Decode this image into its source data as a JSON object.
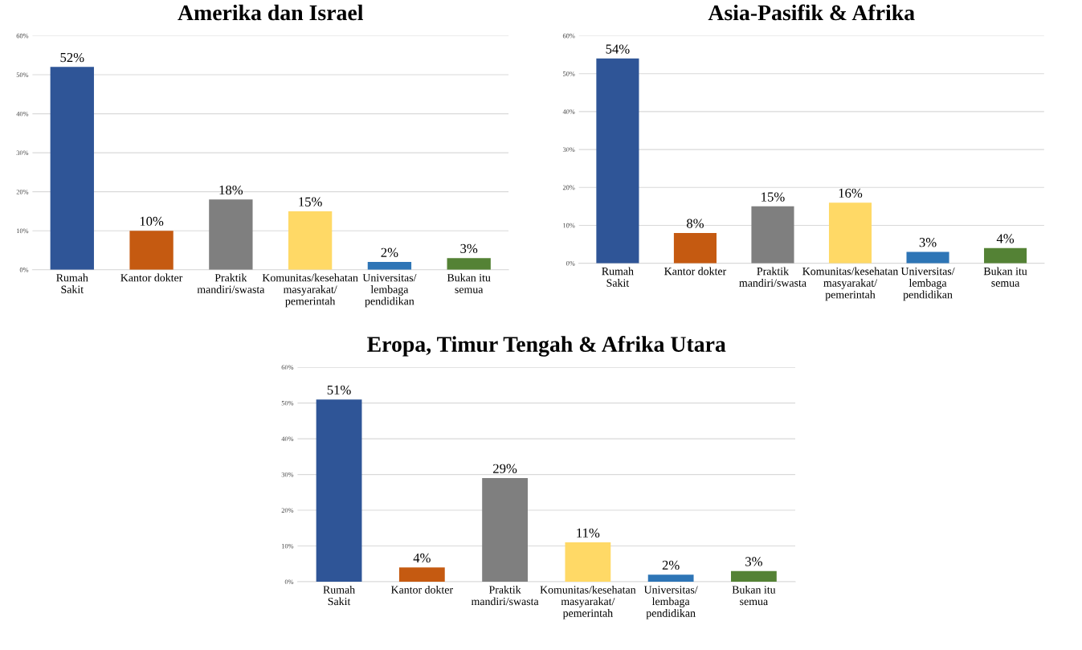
{
  "chart_data": [
    {
      "type": "bar",
      "title": "Amerika dan Israel",
      "categories": [
        "Rumah\nSakit",
        "Kantor dokter",
        "Praktik\nmandiri/swasta",
        "Komunitas/kesehatan\nmasyarakat/\npemerintah",
        "Universitas/\nlembaga\npendidikan",
        "Bukan itu\nsemua"
      ],
      "values": [
        52,
        10,
        18,
        15,
        2,
        3
      ],
      "value_labels": [
        "52%",
        "10%",
        "18%",
        "15%",
        "2%",
        "3%"
      ],
      "colors": [
        "#2f5597",
        "#c55a11",
        "#7f7f7f",
        "#ffd966",
        "#2e75b6",
        "#548235"
      ],
      "ylim": [
        0,
        60
      ],
      "yticks": [
        {
          "value": 0,
          "label": "0%"
        },
        {
          "value": 10,
          "label": "10%"
        },
        {
          "value": 20,
          "label": "20%"
        },
        {
          "value": 30,
          "label": "30%"
        },
        {
          "value": 40,
          "label": "40%"
        },
        {
          "value": 50,
          "label": "50%"
        },
        {
          "value": 60,
          "label": "60%"
        }
      ],
      "grid": "y"
    },
    {
      "type": "bar",
      "title": "Asia-Pasifik & Afrika",
      "categories": [
        "Rumah\nSakit",
        "Kantor dokter",
        "Praktik\nmandiri/swasta",
        "Komunitas/kesehatan\nmasyarakat/\npemerintah",
        "Universitas/\nlembaga\npendidikan",
        "Bukan itu\nsemua"
      ],
      "values": [
        54,
        8,
        15,
        16,
        3,
        4
      ],
      "value_labels": [
        "54%",
        "8%",
        "15%",
        "16%",
        "3%",
        "4%"
      ],
      "colors": [
        "#2f5597",
        "#c55a11",
        "#7f7f7f",
        "#ffd966",
        "#2e75b6",
        "#548235"
      ],
      "ylim": [
        0,
        60
      ],
      "yticks": [
        {
          "value": 0,
          "label": "0%"
        },
        {
          "value": 10,
          "label": "10%"
        },
        {
          "value": 20,
          "label": "20%"
        },
        {
          "value": 30,
          "label": "30%"
        },
        {
          "value": 40,
          "label": "40%"
        },
        {
          "value": 50,
          "label": "50%"
        },
        {
          "value": 60,
          "label": "60%"
        }
      ],
      "grid": "y"
    },
    {
      "type": "bar",
      "title": "Eropa, Timur Tengah & Afrika Utara",
      "categories": [
        "Rumah\nSakit",
        "Kantor dokter",
        "Praktik\nmandiri/swasta",
        "Komunitas/kesehatan\nmasyarakat/\npemerintah",
        "Universitas/\nlembaga\npendidikan",
        "Bukan itu\nsemua"
      ],
      "values": [
        51,
        4,
        29,
        11,
        2,
        3
      ],
      "value_labels": [
        "51%",
        "4%",
        "29%",
        "11%",
        "2%",
        "3%"
      ],
      "colors": [
        "#2f5597",
        "#c55a11",
        "#7f7f7f",
        "#ffd966",
        "#2e75b6",
        "#548235"
      ],
      "ylim": [
        0,
        60
      ],
      "yticks": [
        {
          "value": 0,
          "label": "0%"
        },
        {
          "value": 10,
          "label": "10%"
        },
        {
          "value": 20,
          "label": "20%"
        },
        {
          "value": 30,
          "label": "30%"
        },
        {
          "value": 40,
          "label": "40%"
        },
        {
          "value": 50,
          "label": "50%"
        },
        {
          "value": 60,
          "label": "60%"
        }
      ],
      "grid": "y"
    }
  ]
}
